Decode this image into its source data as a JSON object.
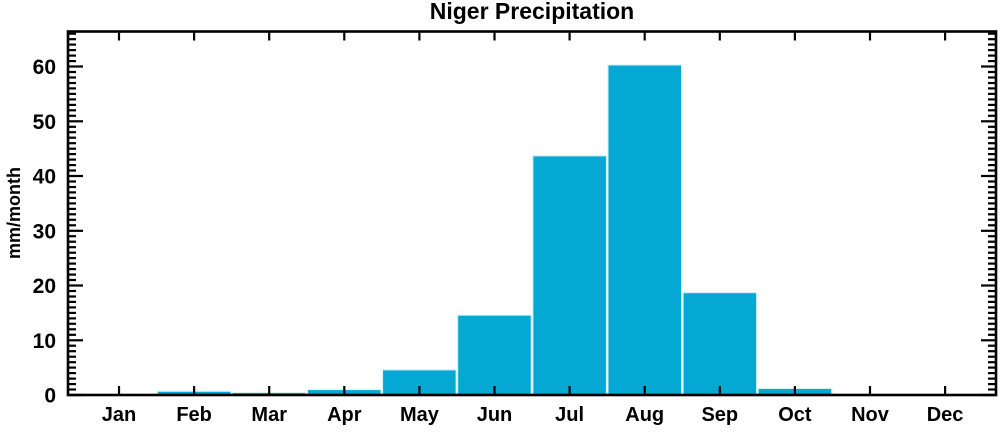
{
  "chart_data": {
    "type": "bar",
    "title": "Niger Precipitation",
    "ylabel": "mm/month",
    "xlabel": "",
    "categories": [
      "Jan",
      "Feb",
      "Mar",
      "Apr",
      "May",
      "Jun",
      "Jul",
      "Aug",
      "Sep",
      "Oct",
      "Nov",
      "Dec"
    ],
    "values": [
      0,
      0.7,
      0.45,
      1.0,
      4.6,
      14.6,
      43.7,
      60.3,
      18.7,
      1.2,
      0,
      0
    ],
    "ylim": [
      0,
      66.4
    ],
    "yticks_major": [
      0,
      10,
      20,
      30,
      40,
      50,
      60
    ],
    "ytick_minor_interval": 1,
    "grid": false,
    "legend": "none",
    "axes_style": "boxed-inward-ticks",
    "colors": {
      "bar_fill": "#04a8d3",
      "bar_edge": "#d9f2f8",
      "axis": "#000000",
      "text": "#000000",
      "background": "#ffffff"
    }
  }
}
